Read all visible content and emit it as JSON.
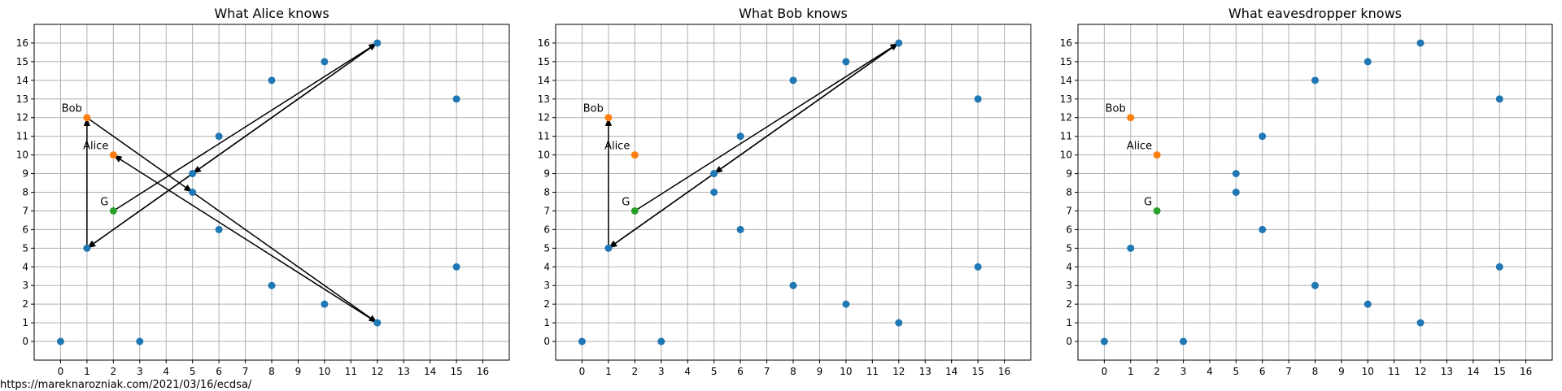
{
  "chart_data": [
    {
      "type": "scatter",
      "title": "What Alice knows",
      "xlim": [
        -1,
        17
      ],
      "ylim": [
        -1,
        17
      ],
      "xticks": [
        "0",
        "1",
        "2",
        "3",
        "4",
        "5",
        "6",
        "7",
        "8",
        "9",
        "10",
        "11",
        "12",
        "13",
        "14",
        "15",
        "16"
      ],
      "yticks": [
        "0",
        "1",
        "2",
        "3",
        "4",
        "5",
        "6",
        "7",
        "8",
        "9",
        "10",
        "11",
        "12",
        "13",
        "14",
        "15",
        "16"
      ],
      "grid": true,
      "series": [
        {
          "color": "#1f77b4",
          "points": [
            [
              0,
              0
            ],
            [
              1,
              5
            ],
            [
              3,
              0
            ],
            [
              5,
              8
            ],
            [
              5,
              9
            ],
            [
              6,
              6
            ],
            [
              6,
              11
            ],
            [
              8,
              3
            ],
            [
              8,
              14
            ],
            [
              10,
              2
            ],
            [
              10,
              15
            ],
            [
              12,
              1
            ],
            [
              12,
              16
            ],
            [
              15,
              4
            ],
            [
              15,
              13
            ]
          ]
        },
        {
          "color": "#ff7f0e",
          "points": [
            [
              1,
              12
            ],
            [
              2,
              10
            ]
          ]
        },
        {
          "color": "#2ca02c",
          "points": [
            [
              2,
              7
            ]
          ]
        }
      ],
      "annotations": [
        {
          "text": "Bob",
          "x": 1,
          "y": 12
        },
        {
          "text": "Alice",
          "x": 2,
          "y": 10
        },
        {
          "text": "G",
          "x": 2,
          "y": 7
        }
      ],
      "arrows": [
        {
          "from": [
            2,
            7
          ],
          "to": [
            12,
            16
          ]
        },
        {
          "from": [
            12,
            16
          ],
          "to": [
            5,
            9
          ]
        },
        {
          "from": [
            5,
            9
          ],
          "to": [
            1,
            5
          ]
        },
        {
          "from": [
            12,
            16
          ],
          "to": [
            1,
            5
          ]
        },
        {
          "from": [
            1,
            5
          ],
          "to": [
            1,
            12
          ]
        },
        {
          "from": [
            1,
            12
          ],
          "to": [
            5,
            8
          ]
        },
        {
          "from": [
            5,
            8
          ],
          "to": [
            12,
            1
          ]
        },
        {
          "from": [
            12,
            1
          ],
          "to": [
            2,
            10
          ]
        }
      ]
    },
    {
      "type": "scatter",
      "title": "What Bob knows",
      "xlim": [
        -1,
        17
      ],
      "ylim": [
        -1,
        17
      ],
      "xticks": [
        "0",
        "1",
        "2",
        "3",
        "4",
        "5",
        "6",
        "7",
        "8",
        "9",
        "10",
        "11",
        "12",
        "13",
        "14",
        "15",
        "16"
      ],
      "yticks": [
        "0",
        "1",
        "2",
        "3",
        "4",
        "5",
        "6",
        "7",
        "8",
        "9",
        "10",
        "11",
        "12",
        "13",
        "14",
        "15",
        "16"
      ],
      "grid": true,
      "series": [
        {
          "color": "#1f77b4",
          "points": [
            [
              0,
              0
            ],
            [
              1,
              5
            ],
            [
              3,
              0
            ],
            [
              5,
              8
            ],
            [
              5,
              9
            ],
            [
              6,
              6
            ],
            [
              6,
              11
            ],
            [
              8,
              3
            ],
            [
              8,
              14
            ],
            [
              10,
              2
            ],
            [
              10,
              15
            ],
            [
              12,
              1
            ],
            [
              12,
              16
            ],
            [
              15,
              4
            ],
            [
              15,
              13
            ]
          ]
        },
        {
          "color": "#ff7f0e",
          "points": [
            [
              1,
              12
            ],
            [
              2,
              10
            ]
          ]
        },
        {
          "color": "#2ca02c",
          "points": [
            [
              2,
              7
            ]
          ]
        }
      ],
      "annotations": [
        {
          "text": "Bob",
          "x": 1,
          "y": 12
        },
        {
          "text": "Alice",
          "x": 2,
          "y": 10
        },
        {
          "text": "G",
          "x": 2,
          "y": 7
        }
      ],
      "arrows": [
        {
          "from": [
            2,
            7
          ],
          "to": [
            12,
            16
          ]
        },
        {
          "from": [
            12,
            16
          ],
          "to": [
            5,
            9
          ]
        },
        {
          "from": [
            5,
            9
          ],
          "to": [
            1,
            5
          ]
        },
        {
          "from": [
            12,
            16
          ],
          "to": [
            1,
            5
          ]
        },
        {
          "from": [
            1,
            5
          ],
          "to": [
            1,
            12
          ]
        }
      ]
    },
    {
      "type": "scatter",
      "title": "What eavesdropper knows",
      "xlim": [
        -1,
        17
      ],
      "ylim": [
        -1,
        17
      ],
      "xticks": [
        "0",
        "1",
        "2",
        "3",
        "4",
        "5",
        "6",
        "7",
        "8",
        "9",
        "10",
        "11",
        "12",
        "13",
        "14",
        "15",
        "16"
      ],
      "yticks": [
        "0",
        "1",
        "2",
        "3",
        "4",
        "5",
        "6",
        "7",
        "8",
        "9",
        "10",
        "11",
        "12",
        "13",
        "14",
        "15",
        "16"
      ],
      "grid": true,
      "series": [
        {
          "color": "#1f77b4",
          "points": [
            [
              0,
              0
            ],
            [
              1,
              5
            ],
            [
              3,
              0
            ],
            [
              5,
              8
            ],
            [
              5,
              9
            ],
            [
              6,
              6
            ],
            [
              6,
              11
            ],
            [
              8,
              3
            ],
            [
              8,
              14
            ],
            [
              10,
              2
            ],
            [
              10,
              15
            ],
            [
              12,
              1
            ],
            [
              12,
              16
            ],
            [
              15,
              4
            ],
            [
              15,
              13
            ]
          ]
        },
        {
          "color": "#ff7f0e",
          "points": [
            [
              1,
              12
            ],
            [
              2,
              10
            ]
          ]
        },
        {
          "color": "#2ca02c",
          "points": [
            [
              2,
              7
            ]
          ]
        }
      ],
      "annotations": [
        {
          "text": "Bob",
          "x": 1,
          "y": 12
        },
        {
          "text": "Alice",
          "x": 2,
          "y": 10
        },
        {
          "text": "G",
          "x": 2,
          "y": 7
        }
      ],
      "arrows": []
    }
  ],
  "footer": {
    "source_text": "https://mareknarozniak.com/2021/03/16/ecdsa/"
  }
}
